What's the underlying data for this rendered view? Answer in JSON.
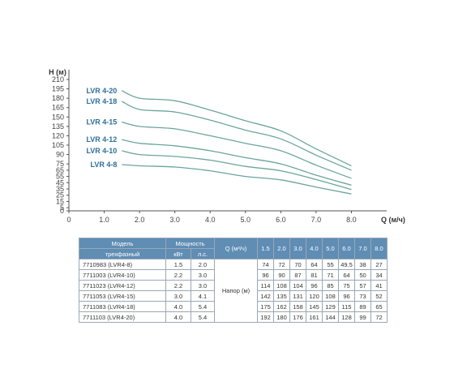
{
  "chart_data": {
    "type": "line",
    "ylabel": "H (м)",
    "xlabel": "Q (м/ч)",
    "xlim": [
      0,
      9
    ],
    "ylim": [
      0,
      210
    ],
    "x_ticks": [
      "0",
      "1.0",
      "2.0",
      "3.0",
      "4.0",
      "5.0",
      "6.0",
      "7.0",
      "8.0"
    ],
    "y_ticks": [
      "0",
      "5",
      "15",
      "25",
      "35",
      "45",
      "55",
      "65",
      "75",
      "90",
      "105",
      "120",
      "135",
      "150",
      "165",
      "180",
      "195",
      "210"
    ],
    "y_tick_values": [
      0,
      5,
      15,
      25,
      35,
      45,
      55,
      65,
      75,
      90,
      105,
      120,
      135,
      150,
      165,
      180,
      195,
      210
    ],
    "x": [
      1.5,
      2.0,
      3.0,
      4.0,
      5.0,
      6.0,
      7.0,
      8.0
    ],
    "series": [
      {
        "name": "LVR 4-20",
        "values": [
          192,
          180,
          176,
          161,
          144,
          128,
          99,
          72
        ]
      },
      {
        "name": "LVR 4-18",
        "values": [
          175,
          162,
          158,
          145,
          129,
          115,
          89,
          65
        ]
      },
      {
        "name": "LVR 4-15",
        "values": [
          142,
          135,
          131,
          120,
          108,
          96,
          73,
          52
        ]
      },
      {
        "name": "LVR 4-12",
        "values": [
          114,
          108,
          104,
          96,
          85,
          75,
          57,
          41
        ]
      },
      {
        "name": "LVR 4-10",
        "values": [
          96,
          90,
          87,
          81,
          71,
          64,
          50,
          34
        ]
      },
      {
        "name": "LVR 4-8",
        "values": [
          74,
          72,
          70,
          64,
          55,
          49.5,
          38,
          27
        ]
      }
    ],
    "line_color": "#6aa59c",
    "label_color": "#2b6f99",
    "grid": false
  },
  "table": {
    "header_model": "Модель",
    "header_model_sub": "трехфазный",
    "header_power": "Мощность",
    "header_kw": "кВт",
    "header_hp": "л.с.",
    "header_q": "Q (м³/ч)",
    "q_values": [
      "1.5",
      "2.0",
      "3.0",
      "4.0",
      "5.0",
      "6.0",
      "7.0",
      "8.0"
    ],
    "head_label": "Напор (м)",
    "rows": [
      {
        "model": "7710983 (LVR4-8)",
        "kw": "1.5",
        "hp": "2.0",
        "h": [
          "74",
          "72",
          "70",
          "64",
          "55",
          "49.5",
          "38",
          "27"
        ]
      },
      {
        "model": "7711003 (LVR4-10)",
        "kw": "2.2",
        "hp": "3.0",
        "h": [
          "96",
          "90",
          "87",
          "81",
          "71",
          "64",
          "50",
          "34"
        ]
      },
      {
        "model": "7711023 (LVR4-12)",
        "kw": "2.2",
        "hp": "3.0",
        "h": [
          "114",
          "108",
          "104",
          "96",
          "85",
          "75",
          "57",
          "41"
        ]
      },
      {
        "model": "7711053 (LVR4-15)",
        "kw": "3.0",
        "hp": "4.1",
        "h": [
          "142",
          "135",
          "131",
          "120",
          "108",
          "96",
          "73",
          "52"
        ]
      },
      {
        "model": "7711083 (LVR4-18)",
        "kw": "4.0",
        "hp": "5.4",
        "h": [
          "175",
          "162",
          "158",
          "145",
          "129",
          "115",
          "89",
          "65"
        ]
      },
      {
        "model": "7711103 (LVR4-20)",
        "kw": "4.0",
        "hp": "5.4",
        "h": [
          "192",
          "180",
          "176",
          "161",
          "144",
          "128",
          "99",
          "72"
        ]
      }
    ]
  }
}
